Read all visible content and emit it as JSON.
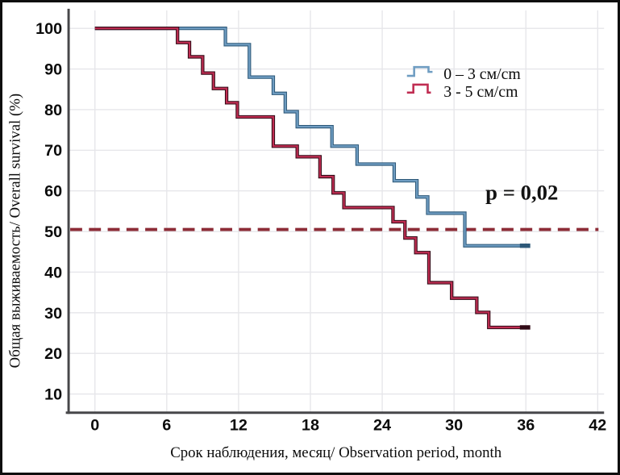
{
  "figure": {
    "p_label": "p = 0,02",
    "frame_color": "#0e0e0e",
    "background": "#ffffff"
  },
  "chart_data": {
    "type": "line",
    "subtype": "kaplan-meier step survival curves",
    "title": "",
    "xlabel": "Срок наблюдения, месяц/ Observation period, month",
    "ylabel": "Общая выживаемость/ Overall survival (%)",
    "x_ticks": [
      0,
      6,
      12,
      18,
      24,
      30,
      36,
      42
    ],
    "y_ticks": [
      10,
      20,
      30,
      40,
      50,
      60,
      70,
      80,
      90,
      100
    ],
    "xlim": [
      -2,
      42
    ],
    "ylim": [
      5,
      103
    ],
    "grid": true,
    "grid_color": "#e6e6ea",
    "axis_color": "#47474a",
    "tick_label_color": "#0b0b0b",
    "legend_position": "upper right inside",
    "annotation": {
      "text": "p = 0,02",
      "month": 35.6,
      "percent": 60
    },
    "reference_line": {
      "value": 50.5,
      "style": "dashed",
      "color": "#8d2c37"
    },
    "series": [
      {
        "name": "0 – 3 см/cm",
        "color": "#6f9dc2",
        "edge_color": "#2d5878",
        "censor_tick_at_end": true,
        "points": [
          [
            0,
            100
          ],
          [
            10.9,
            96
          ],
          [
            12.9,
            88
          ],
          [
            14.9,
            84
          ],
          [
            15.9,
            79.5
          ],
          [
            16.9,
            75.8
          ],
          [
            19.8,
            71
          ],
          [
            21.9,
            66.6
          ],
          [
            25,
            62.5
          ],
          [
            26.9,
            58.5
          ],
          [
            27.8,
            54.5
          ],
          [
            30.9,
            46.5
          ],
          [
            36.3,
            46.5
          ]
        ]
      },
      {
        "name": "3 - 5 см/cm",
        "color": "#c02d52",
        "edge_color": "#310a16",
        "censor_tick_at_end": true,
        "points": [
          [
            0,
            100
          ],
          [
            6.9,
            96.5
          ],
          [
            7.9,
            93
          ],
          [
            9,
            89
          ],
          [
            9.9,
            85.2
          ],
          [
            11,
            81.7
          ],
          [
            11.9,
            78.2
          ],
          [
            14.9,
            71
          ],
          [
            16.9,
            68.4
          ],
          [
            18.8,
            63.5
          ],
          [
            19.9,
            59.5
          ],
          [
            20.8,
            55.9
          ],
          [
            24.9,
            52.4
          ],
          [
            25.9,
            48.4
          ],
          [
            26.8,
            44.8
          ],
          [
            27.9,
            37.4
          ],
          [
            29.8,
            33.6
          ],
          [
            31.9,
            30.1
          ],
          [
            32.9,
            26.4
          ],
          [
            36.3,
            26.4
          ]
        ]
      }
    ]
  }
}
